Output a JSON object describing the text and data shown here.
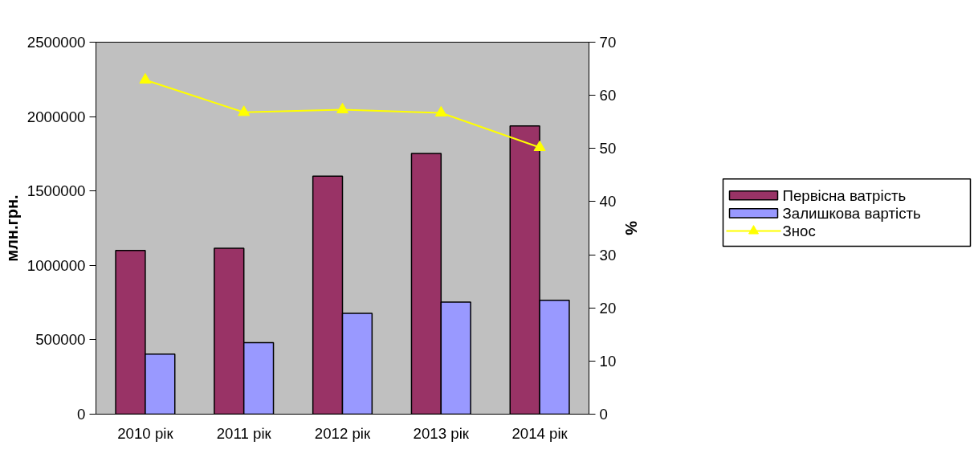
{
  "chart_data": {
    "type": "bar",
    "categories": [
      "2010 рік",
      "2011 рік",
      "2012 рік",
      "2013 рік",
      "2014 рік"
    ],
    "ylabel": "млн.грн.",
    "y2label": "%",
    "series": [
      {
        "name": "Первісна ватрість",
        "color": "#993366",
        "values": [
          1100000,
          1115000,
          1600000,
          1752000,
          1937000
        ]
      },
      {
        "name": "Залишкова вартість",
        "color": "#9999ff",
        "values": [
          404000,
          480000,
          678000,
          753000,
          765000
        ]
      },
      {
        "name": "Знос",
        "type": "line",
        "axis": "y2",
        "color": "#ffff00",
        "marker": "triangle",
        "values": [
          62.9,
          56.8,
          57.3,
          56.7,
          50.2
        ]
      }
    ],
    "ylim": [
      0,
      2500000
    ],
    "yticks": [
      0,
      500000,
      1000000,
      1500000,
      2000000,
      2500000
    ],
    "y2lim": [
      0,
      70
    ],
    "y2ticks": [
      0,
      10,
      20,
      30,
      40,
      50,
      60,
      70
    ],
    "grid": false,
    "legend": "right"
  }
}
